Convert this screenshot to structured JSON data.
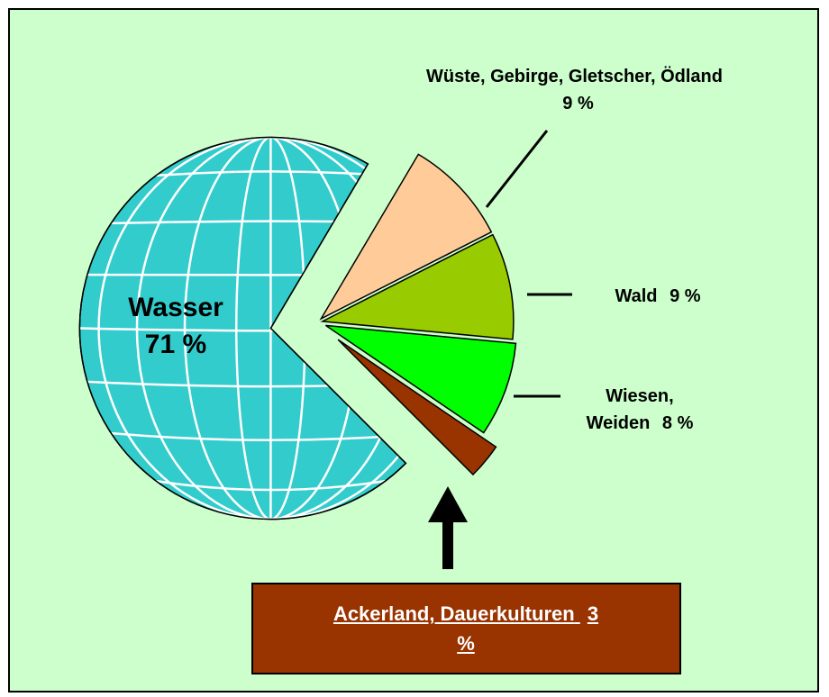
{
  "chart_data": {
    "type": "pie",
    "categories": [
      "Wasser",
      "Wüste, Gebirge, Gletscher, Ödland",
      "Wald",
      "Wiesen, Weiden",
      "Ackerland, Dauerkulturen"
    ],
    "values": [
      71,
      9,
      9,
      8,
      3
    ],
    "value_labels": [
      "71 %",
      "9 %",
      "9 %",
      "8 %",
      "3 %"
    ],
    "colors": [
      "#33cccc",
      "#ffcc99",
      "#99cc00",
      "#00ff00",
      "#993300"
    ]
  }
}
